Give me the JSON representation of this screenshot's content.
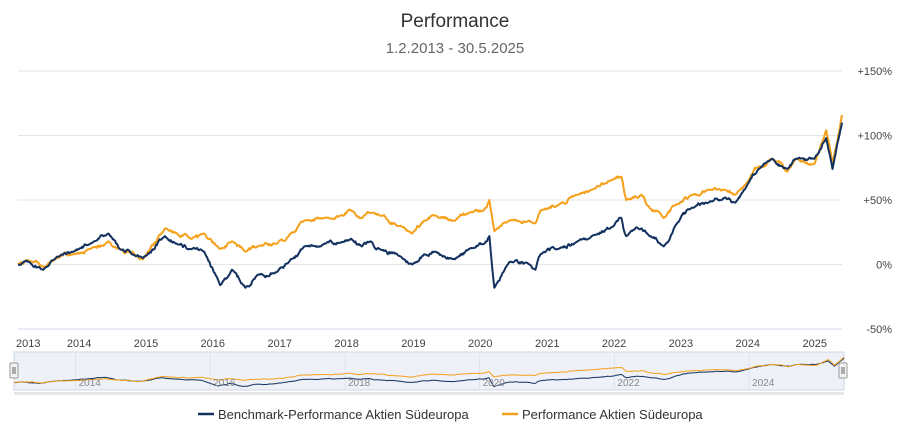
{
  "chart_data": {
    "type": "line",
    "title": "Performance",
    "subtitle": "1.2.2013 - 30.5.2025",
    "xlabel": "",
    "ylabel": "",
    "xlim": [
      "2013-02-01",
      "2025-05-30"
    ],
    "ylim": [
      -50,
      150
    ],
    "y_ticks": [
      -50,
      0,
      50,
      100,
      150
    ],
    "y_tick_labels": [
      "-50%",
      "0%",
      "+50%",
      "+100%",
      "+150%"
    ],
    "x_tick_labels": [
      "2013",
      "2014",
      "2015",
      "2016",
      "2017",
      "2018",
      "2019",
      "2020",
      "2021",
      "2022",
      "2023",
      "2024",
      "2025"
    ],
    "navigator_tick_labels": [
      "2014",
      "2016",
      "2018",
      "2020",
      "2022",
      "2024"
    ],
    "grid": "horizontal",
    "legend_position": "bottom-center",
    "colors": {
      "benchmark": "#12315e",
      "fund": "#f5a01a",
      "grid": "#e6e6e6",
      "navigator_bg": "#eef1f8",
      "navigator_outside": "#e8e8e8"
    },
    "series": [
      {
        "name": "Benchmark-Performance Aktien Südeuropa",
        "color": "#12315e",
        "points": [
          [
            "2013-02-01",
            0
          ],
          [
            "2013-04-01",
            2
          ],
          [
            "2013-06-20",
            -4
          ],
          [
            "2013-09-01",
            6
          ],
          [
            "2013-12-01",
            10
          ],
          [
            "2014-03-01",
            16
          ],
          [
            "2014-06-10",
            24
          ],
          [
            "2014-08-10",
            12
          ],
          [
            "2014-10-15",
            8
          ],
          [
            "2014-12-15",
            5
          ],
          [
            "2015-04-15",
            22
          ],
          [
            "2015-06-20",
            16
          ],
          [
            "2015-09-01",
            12
          ],
          [
            "2015-11-15",
            10
          ],
          [
            "2016-02-10",
            -16
          ],
          [
            "2016-04-15",
            -4
          ],
          [
            "2016-06-27",
            -18
          ],
          [
            "2016-09-01",
            -8
          ],
          [
            "2016-12-15",
            -6
          ],
          [
            "2017-03-01",
            4
          ],
          [
            "2017-05-15",
            14
          ],
          [
            "2017-09-01",
            16
          ],
          [
            "2017-12-01",
            17
          ],
          [
            "2018-01-25",
            20
          ],
          [
            "2018-03-25",
            14
          ],
          [
            "2018-05-10",
            18
          ],
          [
            "2018-07-01",
            12
          ],
          [
            "2018-10-25",
            6
          ],
          [
            "2018-12-25",
            0
          ],
          [
            "2019-03-01",
            8
          ],
          [
            "2019-05-01",
            10
          ],
          [
            "2019-08-15",
            4
          ],
          [
            "2019-11-01",
            12
          ],
          [
            "2020-01-20",
            16
          ],
          [
            "2020-02-20",
            22
          ],
          [
            "2020-03-18",
            -18
          ],
          [
            "2020-06-08",
            2
          ],
          [
            "2020-09-25",
            0
          ],
          [
            "2020-10-28",
            -4
          ],
          [
            "2020-11-25",
            8
          ],
          [
            "2021-03-01",
            12
          ],
          [
            "2021-06-15",
            18
          ],
          [
            "2021-09-01",
            22
          ],
          [
            "2021-12-31",
            30
          ],
          [
            "2022-02-10",
            36
          ],
          [
            "2022-03-08",
            22
          ],
          [
            "2022-06-01",
            28
          ],
          [
            "2022-07-01",
            24
          ],
          [
            "2022-09-29",
            14
          ],
          [
            "2022-12-01",
            30
          ],
          [
            "2023-03-01",
            44
          ],
          [
            "2023-06-01",
            48
          ],
          [
            "2023-09-01",
            52
          ],
          [
            "2023-10-25",
            48
          ],
          [
            "2023-12-31",
            62
          ],
          [
            "2024-03-01",
            74
          ],
          [
            "2024-05-15",
            82
          ],
          [
            "2024-08-05",
            74
          ],
          [
            "2024-09-20",
            82
          ],
          [
            "2024-12-31",
            82
          ],
          [
            "2025-03-05",
            98
          ],
          [
            "2025-04-08",
            74
          ],
          [
            "2025-05-30",
            110
          ]
        ]
      },
      {
        "name": "Performance Aktien Südeuropa",
        "color": "#f5a01a",
        "points": [
          [
            "2013-02-01",
            0
          ],
          [
            "2013-04-01",
            3
          ],
          [
            "2013-06-20",
            -2
          ],
          [
            "2013-09-01",
            5
          ],
          [
            "2013-12-01",
            8
          ],
          [
            "2014-03-01",
            12
          ],
          [
            "2014-06-10",
            18
          ],
          [
            "2014-08-10",
            12
          ],
          [
            "2014-10-15",
            10
          ],
          [
            "2014-12-15",
            4
          ],
          [
            "2015-04-15",
            28
          ],
          [
            "2015-06-20",
            24
          ],
          [
            "2015-09-01",
            20
          ],
          [
            "2015-11-15",
            24
          ],
          [
            "2016-02-10",
            12
          ],
          [
            "2016-04-15",
            18
          ],
          [
            "2016-06-27",
            10
          ],
          [
            "2016-09-01",
            14
          ],
          [
            "2016-12-15",
            16
          ],
          [
            "2017-03-01",
            24
          ],
          [
            "2017-05-15",
            34
          ],
          [
            "2017-09-01",
            36
          ],
          [
            "2017-12-01",
            38
          ],
          [
            "2018-01-25",
            42
          ],
          [
            "2018-03-25",
            36
          ],
          [
            "2018-05-10",
            40
          ],
          [
            "2018-07-01",
            38
          ],
          [
            "2018-10-25",
            30
          ],
          [
            "2018-12-25",
            24
          ],
          [
            "2019-03-01",
            34
          ],
          [
            "2019-05-01",
            38
          ],
          [
            "2019-08-15",
            34
          ],
          [
            "2019-11-01",
            40
          ],
          [
            "2020-01-20",
            42
          ],
          [
            "2020-02-20",
            50
          ],
          [
            "2020-03-18",
            26
          ],
          [
            "2020-06-08",
            34
          ],
          [
            "2020-09-25",
            34
          ],
          [
            "2020-10-28",
            32
          ],
          [
            "2020-11-25",
            42
          ],
          [
            "2021-03-01",
            46
          ],
          [
            "2021-06-15",
            54
          ],
          [
            "2021-09-01",
            58
          ],
          [
            "2021-12-31",
            66
          ],
          [
            "2022-02-10",
            68
          ],
          [
            "2022-03-08",
            50
          ],
          [
            "2022-06-01",
            54
          ],
          [
            "2022-07-01",
            46
          ],
          [
            "2022-09-29",
            36
          ],
          [
            "2022-12-01",
            46
          ],
          [
            "2023-03-01",
            54
          ],
          [
            "2023-06-01",
            58
          ],
          [
            "2023-09-01",
            58
          ],
          [
            "2023-10-25",
            54
          ],
          [
            "2023-12-31",
            64
          ],
          [
            "2024-03-01",
            76
          ],
          [
            "2024-05-15",
            82
          ],
          [
            "2024-08-05",
            72
          ],
          [
            "2024-09-20",
            82
          ],
          [
            "2024-12-31",
            78
          ],
          [
            "2025-03-05",
            104
          ],
          [
            "2025-04-08",
            78
          ],
          [
            "2025-05-30",
            116
          ]
        ]
      }
    ]
  }
}
